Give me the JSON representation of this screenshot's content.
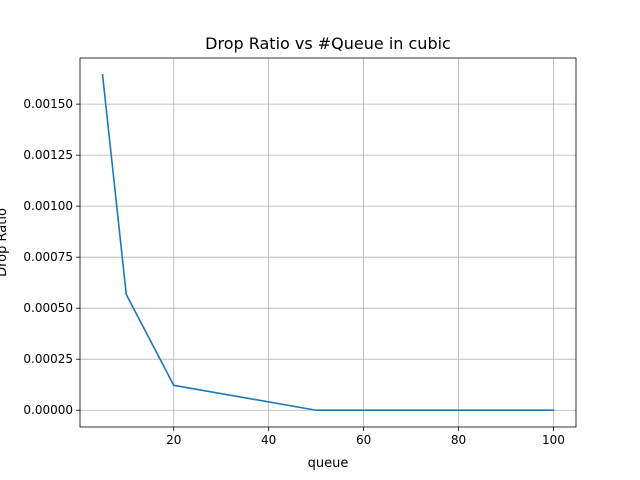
{
  "chart_data": {
    "type": "line",
    "title": "Drop Ratio vs #Queue in cubic",
    "xlabel": "queue",
    "ylabel": "Drop Ratio",
    "xlim": [
      0.25,
      104.75
    ],
    "ylim": [
      -8.22e-05,
      0.001726
    ],
    "grid": true,
    "x_ticks": [
      20,
      40,
      60,
      80,
      100
    ],
    "x_tick_labels": [
      "20",
      "40",
      "60",
      "80",
      "100"
    ],
    "y_ticks": [
      0,
      0.00025,
      0.0005,
      0.00075,
      0.001,
      0.00125,
      0.0015
    ],
    "y_tick_labels": [
      "0.00000",
      "0.00025",
      "0.00050",
      "0.00075",
      "0.00100",
      "0.00125",
      "0.00150"
    ],
    "series": [
      {
        "color": "#1f77b4",
        "x": [
          5,
          10,
          20,
          50,
          100
        ],
        "y": [
          0.001644,
          0.000567,
          0.000122,
          0.0,
          0.0
        ]
      }
    ]
  }
}
